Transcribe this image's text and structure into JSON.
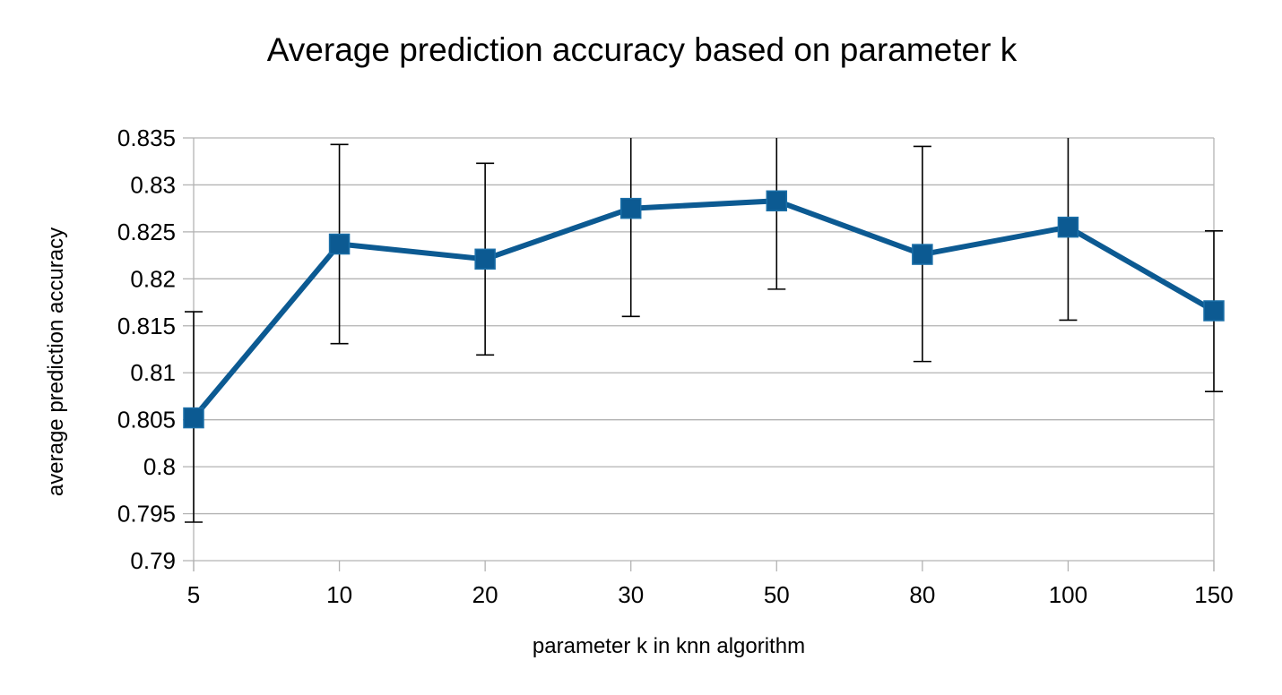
{
  "chart_data": {
    "type": "line",
    "title": "Average prediction accuracy based on parameter k",
    "xlabel": "parameter k in knn algorithm",
    "ylabel": "average prediction accuracy",
    "categories": [
      "5",
      "10",
      "20",
      "30",
      "50",
      "80",
      "100",
      "150"
    ],
    "series": [
      {
        "values": [
          0.8052,
          0.8237,
          0.8221,
          0.8275,
          0.8283,
          0.8226,
          0.8255,
          0.8166
        ],
        "error_low": [
          0.7941,
          0.8131,
          0.8119,
          0.816,
          0.8189,
          0.8112,
          0.8156,
          0.808
        ],
        "error_high": [
          0.8165,
          0.8343,
          0.8323,
          0.835,
          0.835,
          0.8341,
          0.835,
          0.8251
        ],
        "color": "#0c5a92"
      }
    ],
    "ylim": [
      0.79,
      0.835
    ],
    "yticks": [
      "0.79",
      "0.795",
      "0.8",
      "0.805",
      "0.81",
      "0.815",
      "0.82",
      "0.825",
      "0.83",
      "0.835"
    ],
    "grid": true,
    "legend": "none"
  }
}
